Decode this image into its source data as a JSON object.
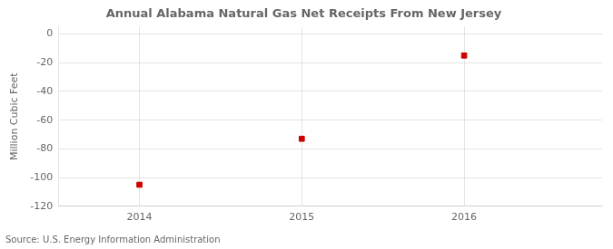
{
  "chart_data": {
    "type": "scatter",
    "title": "Annual Alabama Natural Gas Net Receipts From New Jersey",
    "ylabel": "Million Cubic Feet",
    "source": "Source: U.S. Energy Information Administration",
    "x": [
      2014,
      2015,
      2016
    ],
    "values": [
      -105,
      -73,
      -15
    ],
    "color": "#cc0000",
    "marker": "square",
    "xlim": [
      2013.5,
      2016.85
    ],
    "ylim": [
      -120,
      5
    ],
    "xticks": [
      2014,
      2015,
      2016
    ],
    "yticks": [
      0,
      -20,
      -40,
      -60,
      -80,
      -100,
      -120
    ],
    "grid": true
  }
}
